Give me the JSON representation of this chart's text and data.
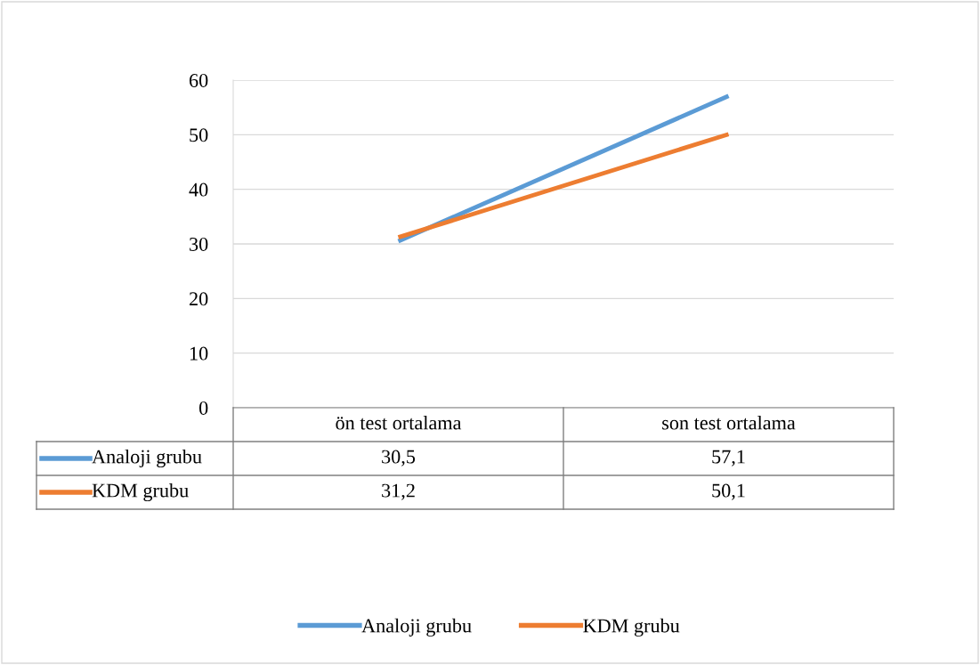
{
  "chart_data": {
    "type": "line",
    "categories": [
      "ön test ortalama",
      "son test ortalama"
    ],
    "series": [
      {
        "name": "Analoji grubu",
        "color": "#5b9bd5",
        "values": [
          30.5,
          57.1
        ],
        "value_labels": [
          "30,5",
          "57,1"
        ]
      },
      {
        "name": "KDM grubu",
        "color": "#ed7d31",
        "values": [
          31.2,
          50.1
        ],
        "value_labels": [
          "31,2",
          "50,1"
        ]
      }
    ],
    "ylim": [
      0,
      60
    ],
    "yticks": [
      0,
      10,
      20,
      30,
      40,
      50,
      60
    ],
    "grid": "y",
    "legend": "bottom",
    "marker": "none",
    "line_style": "solid"
  }
}
